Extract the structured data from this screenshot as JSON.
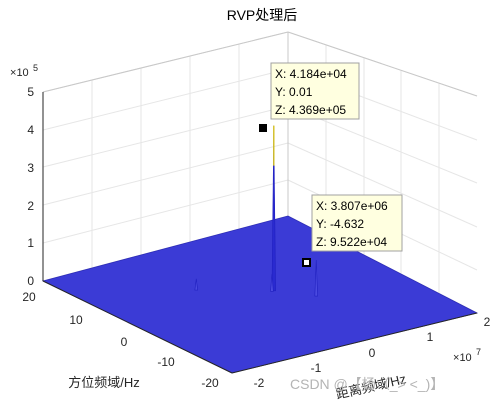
{
  "chart_data": {
    "type": "surface",
    "title": "RVP处理后",
    "xlabel": "方位频域/Hz",
    "ylabel": "距离频域/Hz",
    "zlabel": "",
    "x_ticks": [
      "20",
      "10",
      "0",
      "-10",
      "-20"
    ],
    "y_ticks": [
      "-2",
      "-1",
      "0",
      "1",
      "2"
    ],
    "y_exponent": "10",
    "y_exponent_power": "7",
    "z_ticks": [
      "0",
      "1",
      "2",
      "3",
      "4",
      "5"
    ],
    "z_exponent": "10",
    "z_exponent_power": "5",
    "xlim": [
      -20,
      20
    ],
    "ylim": [
      -25000000,
      20000000
    ],
    "zlim": [
      0,
      500000
    ],
    "grid": true,
    "surface_color": "#3b3bd6",
    "peaks": [
      {
        "x": 0.01,
        "y": 41840,
        "z": 436900
      },
      {
        "x": -4.632,
        "y": 3807000,
        "z": 95220
      },
      {
        "x": 6,
        "y": -9000000,
        "z": 30000
      },
      {
        "x": 0.01,
        "y": -300000,
        "z": 45000
      }
    ],
    "datatips": [
      {
        "X": "X: 4.184e+04",
        "Y": "Y: 0.01",
        "Z": "Z: 4.369e+05"
      },
      {
        "X": "X: 3.807e+06",
        "Y": "Y: -4.632",
        "Z": "Z: 9.522e+04"
      }
    ]
  },
  "watermark": "CSDN @【杨（_> <_)】"
}
